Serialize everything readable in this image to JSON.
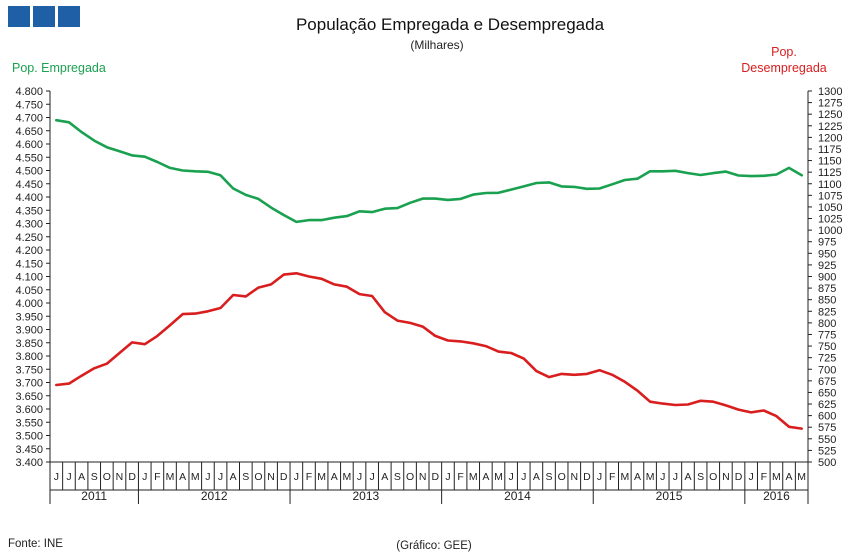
{
  "logo": {
    "icon": "logo-squares-icon",
    "color": "#1f5fa6"
  },
  "chart_data": {
    "type": "line",
    "title": "População Empregada e Desempregada",
    "subtitle": "(Milhares)",
    "left_axis_label": "Pop. Empregada",
    "right_axis_label": [
      "Pop.",
      "Desempregada"
    ],
    "source": "Fonte: INE",
    "credit": "(Gráfico: GEE)",
    "grid": false,
    "y_left": {
      "min": 3400,
      "max": 4800,
      "step": 50,
      "tick_labels": [
        "3.400",
        "3.450",
        "3.500",
        "3.550",
        "3.600",
        "3.650",
        "3.700",
        "3.750",
        "3.800",
        "3.850",
        "3.900",
        "3.950",
        "4.000",
        "4.050",
        "4.100",
        "4.150",
        "4.200",
        "4.250",
        "4.300",
        "4.350",
        "4.400",
        "4.450",
        "4.500",
        "4.550",
        "4.600",
        "4.650",
        "4.700",
        "4.750",
        "4.800"
      ]
    },
    "y_right": {
      "min": 500,
      "max": 1300,
      "step": 25
    },
    "months": [
      "J",
      "J",
      "A",
      "S",
      "O",
      "N",
      "D",
      "J",
      "F",
      "M",
      "A",
      "M",
      "J",
      "J",
      "A",
      "S",
      "O",
      "N",
      "D",
      "J",
      "F",
      "M",
      "A",
      "M",
      "J",
      "J",
      "A",
      "S",
      "O",
      "N",
      "D",
      "J",
      "F",
      "M",
      "A",
      "M",
      "J",
      "J",
      "A",
      "S",
      "O",
      "N",
      "D",
      "J",
      "F",
      "M",
      "A",
      "M",
      "J",
      "J",
      "A",
      "S",
      "O",
      "N",
      "D",
      "J",
      "F",
      "M",
      "A",
      "M"
    ],
    "years": [
      {
        "label": "2011",
        "months": 7
      },
      {
        "label": "2012",
        "months": 12
      },
      {
        "label": "2013",
        "months": 12
      },
      {
        "label": "2014",
        "months": 12
      },
      {
        "label": "2015",
        "months": 12
      },
      {
        "label": "2016",
        "months": 5
      }
    ],
    "series": [
      {
        "name": "Pop. Empregada",
        "axis": "left",
        "color": "#1aa150",
        "values": [
          4690,
          4682,
          4645,
          4613,
          4588,
          4573,
          4557,
          4552,
          4532,
          4510,
          4500,
          4497,
          4495,
          4482,
          4432,
          4408,
          4393,
          4360,
          4332,
          4306,
          4313,
          4313,
          4322,
          4328,
          4346,
          4343,
          4356,
          4358,
          4378,
          4394,
          4394,
          4389,
          4393,
          4409,
          4415,
          4416,
          4428,
          4440,
          4453,
          4455,
          4440,
          4438,
          4431,
          4432,
          4448,
          4464,
          4469,
          4497,
          4497,
          4499,
          4490,
          4483,
          4490,
          4496,
          4481,
          4479,
          4480,
          4485,
          4510,
          4482
        ]
      },
      {
        "name": "Pop. Desempregada",
        "axis": "right",
        "color": "#d81e1e",
        "values": [
          666,
          669,
          686,
          702,
          712,
          735,
          758,
          754,
          772,
          795,
          819,
          820,
          825,
          832,
          860,
          857,
          876,
          883,
          904,
          907,
          900,
          895,
          883,
          878,
          862,
          858,
          823,
          805,
          800,
          792,
          772,
          762,
          760,
          756,
          750,
          738,
          735,
          723,
          696,
          683,
          690,
          688,
          690,
          698,
          688,
          673,
          654,
          630,
          626,
          623,
          624,
          632,
          630,
          622,
          613,
          607,
          611,
          599,
          576,
          572
        ]
      }
    ]
  }
}
